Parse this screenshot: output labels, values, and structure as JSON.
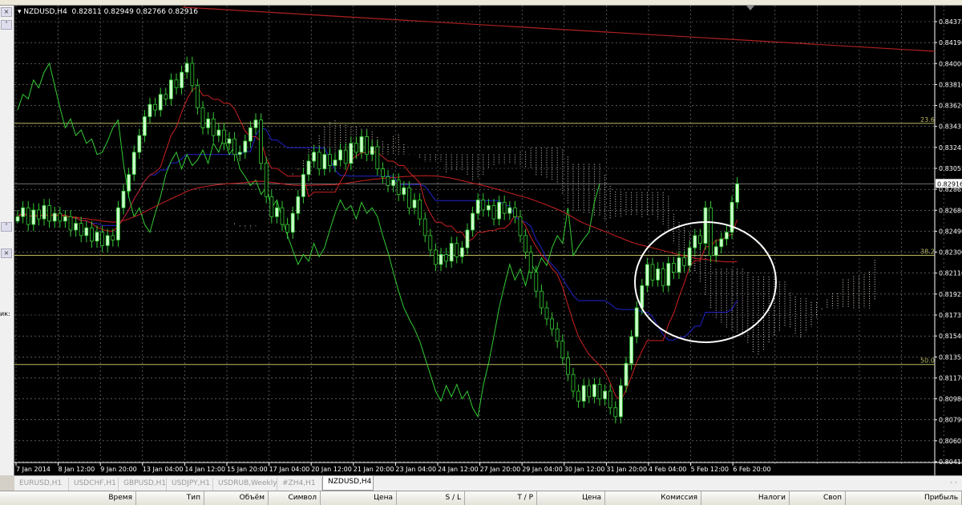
{
  "chart_header": {
    "symbol": "NZDUSD,H4",
    "ohlc": "0.82811 0.82949 0.82766 0.82916"
  },
  "left_panel": {
    "close_icon": "×",
    "up_icon": "˄",
    "down_icon": "˅",
    "partial_label": "ик:"
  },
  "price_axis": {
    "labels": [
      "0.84375",
      "0.84190",
      "0.84000",
      "0.83810",
      "0.83620",
      "0.83435",
      "0.83245",
      "0.83055",
      "0.82865",
      "0.82680",
      "0.82490",
      "0.82300",
      "0.82110",
      "0.81925",
      "0.81735",
      "0.81546",
      "0.81355",
      "0.81170",
      "0.80980",
      "0.80790",
      "0.80605",
      "0.80415"
    ],
    "current_price": "0.82916",
    "max": 0.84375,
    "min": 0.80415
  },
  "fib_levels": [
    {
      "label": "23.6",
      "price": 0.8346
    },
    {
      "label": "38.2",
      "price": 0.82272
    },
    {
      "label": "50.0",
      "price": 0.8129
    }
  ],
  "time_axis": [
    "7 Jan 2014",
    "8 Jan 12:00",
    "9 Jan 20:00",
    "13 Jan 04:00",
    "14 Jan 12:00",
    "15 Jan 20:00",
    "17 Jan 04:00",
    "20 Jan 12:00",
    "21 Jan 20:00",
    "23 Jan 04:00",
    "24 Jan 12:00",
    "27 Jan 20:00",
    "29 Jan 04:00",
    "30 Jan 12:00",
    "31 Jan 20:00",
    "4 Feb 04:00",
    "5 Feb 12:00",
    "6 Feb 20:00"
  ],
  "chart_data": {
    "type": "candlestick",
    "timeframe": "H4",
    "closes": [
      0.8262,
      0.827,
      0.8255,
      0.8268,
      0.826,
      0.8272,
      0.8258,
      0.8265,
      0.8258,
      0.8262,
      0.825,
      0.8256,
      0.8245,
      0.8252,
      0.824,
      0.8248,
      0.8236,
      0.8245,
      0.8241,
      0.827,
      0.8285,
      0.83,
      0.832,
      0.8335,
      0.8352,
      0.8363,
      0.8358,
      0.8372,
      0.8368,
      0.8385,
      0.8378,
      0.8392,
      0.84,
      0.838,
      0.836,
      0.8342,
      0.835,
      0.8335,
      0.834,
      0.8328,
      0.8332,
      0.8318,
      0.832,
      0.833,
      0.8342,
      0.8349,
      0.831,
      0.828,
      0.8262,
      0.827,
      0.8255,
      0.8248,
      0.8265,
      0.828,
      0.83,
      0.8312,
      0.832,
      0.8305,
      0.8318,
      0.8308,
      0.8313,
      0.8322,
      0.831,
      0.8328,
      0.832,
      0.8334,
      0.8318,
      0.8325,
      0.8305,
      0.8298,
      0.829,
      0.8295,
      0.8282,
      0.8288,
      0.827,
      0.8277,
      0.826,
      0.8245,
      0.8232,
      0.8219,
      0.8228,
      0.8222,
      0.8238,
      0.8226,
      0.8234,
      0.825,
      0.8265,
      0.8277,
      0.8268,
      0.8272,
      0.826,
      0.8275,
      0.8265,
      0.827,
      0.8262,
      0.8245,
      0.823,
      0.8212,
      0.8195,
      0.818,
      0.817,
      0.8161,
      0.815,
      0.8135,
      0.812,
      0.8105,
      0.8096,
      0.811,
      0.81,
      0.8111,
      0.8098,
      0.8105,
      0.809,
      0.8082,
      0.811,
      0.813,
      0.8154,
      0.818,
      0.82,
      0.8219,
      0.8205,
      0.8215,
      0.82,
      0.822,
      0.8212,
      0.8225,
      0.8218,
      0.8234,
      0.8245,
      0.8238,
      0.827,
      0.8227,
      0.8235,
      0.8242,
      0.8248,
      0.8275,
      0.82916
    ],
    "indicators": [
      "Ichimoku",
      "Moving Average",
      "Trendline",
      "Fibonacci"
    ],
    "colors": {
      "bull": "#ccffcc",
      "bear": "#33cc33",
      "tenkan": "#cc2222",
      "kijun": "#2222cc",
      "chikou": "#33cc33",
      "ma": "#cc2222",
      "fib": "#bbbb66",
      "grid": "#888888"
    }
  },
  "tabs": [
    {
      "label": "EURUSD,H1",
      "active": false
    },
    {
      "label": "USDCHF,H1",
      "active": false
    },
    {
      "label": "GBPUSD,H1",
      "active": false
    },
    {
      "label": "USDJPY,H1",
      "active": false
    },
    {
      "label": "USDRUB,Weekly",
      "active": false
    },
    {
      "label": "#ZH4,H1",
      "active": false
    },
    {
      "label": "NZDUSD,H4",
      "active": true
    }
  ],
  "tab_scroll": "‹ ›",
  "trade_columns": [
    "Время",
    "Тип",
    "Объём",
    "Символ",
    "Цена",
    "S / L",
    "T / P",
    "Цена",
    "Комиссия",
    "Налоги",
    "Своп",
    "Прибыль"
  ]
}
